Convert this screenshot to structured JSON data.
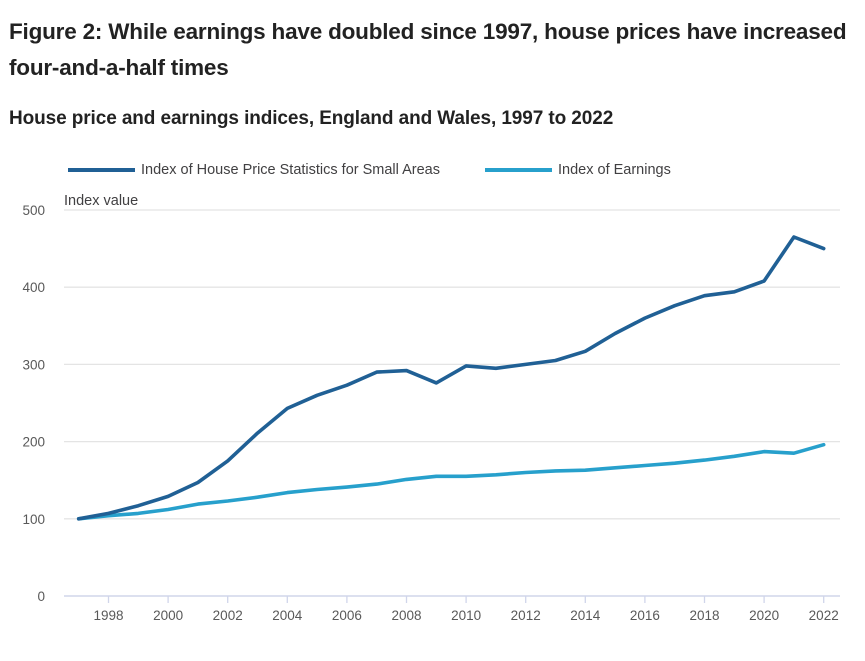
{
  "figure": {
    "title": "Figure 2: While earnings have doubled since 1997, house prices have increased four-and-a-half times",
    "subtitle": "House price and earnings indices, England and Wales, 1997 to 2022"
  },
  "chart_data": {
    "type": "line",
    "title": "Figure 2: While earnings have doubled since 1997, house prices have increased four-and-a-half times",
    "subtitle": "House price and earnings indices, England and Wales, 1997 to 2022",
    "xlabel": "",
    "ylabel": "Index value",
    "x": [
      1997,
      1998,
      1999,
      2000,
      2001,
      2002,
      2003,
      2004,
      2005,
      2006,
      2007,
      2008,
      2009,
      2010,
      2011,
      2012,
      2013,
      2014,
      2015,
      2016,
      2017,
      2018,
      2019,
      2020,
      2021,
      2022
    ],
    "xlim": [
      1997,
      2022.5
    ],
    "ylim": [
      0,
      500
    ],
    "xticks": [
      1998,
      2000,
      2002,
      2004,
      2006,
      2008,
      2010,
      2012,
      2014,
      2016,
      2018,
      2020,
      2022
    ],
    "yticks": [
      0,
      100,
      200,
      300,
      400,
      500
    ],
    "grid": true,
    "legend_position": "top",
    "series": [
      {
        "name": "Index of House Price Statistics for Small Areas",
        "color": "#206095",
        "values": [
          100,
          107,
          117,
          129,
          147,
          175,
          211,
          243,
          260,
          273,
          290,
          292,
          276,
          298,
          295,
          300,
          305,
          317,
          340,
          360,
          376,
          389,
          394,
          408,
          465,
          450
        ]
      },
      {
        "name": "Index of Earnings",
        "color": "#27A0CC",
        "values": [
          100,
          104,
          107,
          112,
          119,
          123,
          128,
          134,
          138,
          141,
          145,
          151,
          155,
          155,
          157,
          160,
          162,
          163,
          166,
          169,
          172,
          176,
          181,
          187,
          185,
          196
        ]
      }
    ]
  }
}
